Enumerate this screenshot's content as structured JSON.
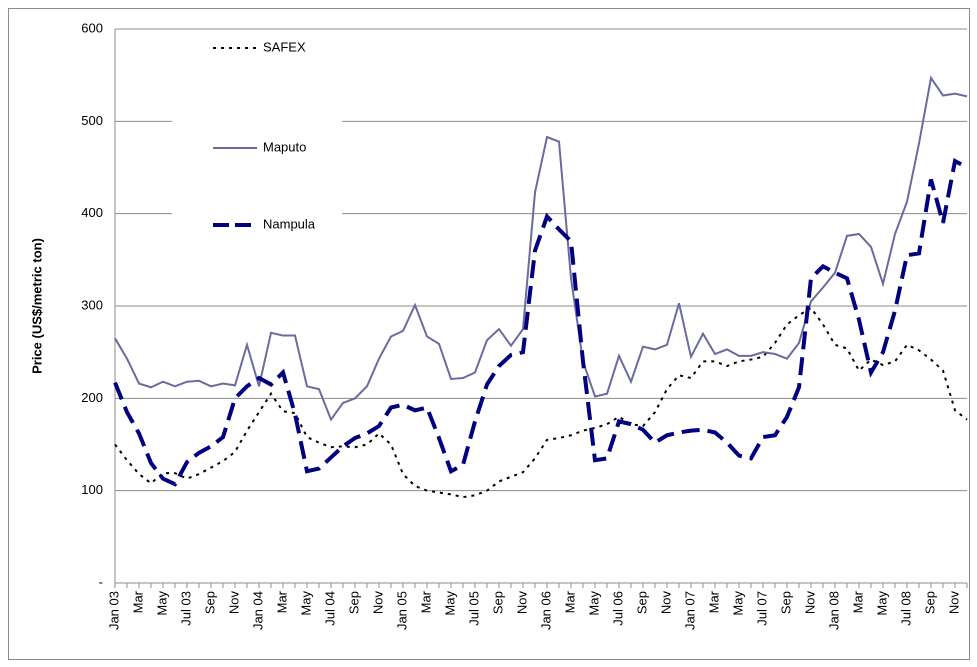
{
  "chart_data": {
    "type": "line",
    "ylabel": "Price (US$/metric ton)",
    "categories": [
      "Jan 03",
      null,
      "Mar",
      null,
      "May",
      null,
      "Jul 03",
      null,
      "Sep",
      null,
      "Nov",
      null,
      "Jan 04",
      null,
      "Mar",
      null,
      "May",
      null,
      "Jul 04",
      null,
      "Sep",
      null,
      "Nov",
      null,
      "Jan 05",
      null,
      "Mar",
      null,
      "May",
      null,
      "Jul 05",
      null,
      "Sep",
      null,
      "Nov",
      null,
      "Jan 06",
      null,
      "Mar",
      null,
      "May",
      null,
      "Jul 06",
      null,
      "Sep",
      null,
      "Nov",
      null,
      "Jan 07",
      null,
      "Mar",
      null,
      "May",
      null,
      "Jul 07",
      null,
      "Sep",
      null,
      "Nov",
      null,
      "Jan 08",
      null,
      "Mar",
      null,
      "May",
      null,
      "Jul 08",
      null,
      "Sep",
      null,
      "Nov",
      null
    ],
    "series": [
      {
        "name": "SAFEX",
        "color": "#000000",
        "line_style": "dotted",
        "values": [
          150,
          133,
          118,
          108,
          119,
          119,
          113,
          118,
          125,
          132,
          142,
          165,
          185,
          205,
          186,
          184,
          158,
          152,
          147,
          148,
          147,
          150,
          162,
          150,
          118,
          105,
          100,
          98,
          96,
          93,
          95,
          100,
          110,
          115,
          120,
          135,
          155,
          157,
          160,
          165,
          168,
          172,
          180,
          172,
          170,
          185,
          210,
          225,
          222,
          240,
          240,
          235,
          240,
          242,
          245,
          260,
          280,
          290,
          298,
          280,
          258,
          254,
          230,
          242,
          236,
          240,
          258,
          252,
          242,
          230,
          187,
          177
        ]
      },
      {
        "name": "Maputo",
        "color": "#6b6b9e",
        "line_style": "solid",
        "values": [
          265,
          243,
          216,
          212,
          218,
          213,
          218,
          219,
          213,
          216,
          214,
          258,
          213,
          271,
          268,
          268,
          213,
          210,
          177,
          195,
          200,
          213,
          243,
          267,
          273,
          301,
          267,
          259,
          221,
          222,
          228,
          263,
          275,
          257,
          275,
          423,
          483,
          478,
          330,
          240,
          202,
          205,
          246,
          218,
          256,
          253,
          258,
          303,
          245,
          270,
          248,
          253,
          246,
          246,
          250,
          248,
          243,
          260,
          305,
          320,
          336,
          376,
          378,
          364,
          324,
          378,
          413,
          476,
          547,
          528,
          530,
          527
        ]
      },
      {
        "name": "Nampula",
        "color": "#000080",
        "line_style": "dashed",
        "values": [
          217,
          185,
          162,
          130,
          113,
          107,
          131,
          141,
          148,
          158,
          200,
          213,
          222,
          215,
          228,
          183,
          121,
          124,
          136,
          148,
          157,
          162,
          170,
          190,
          193,
          187,
          190,
          157,
          121,
          128,
          175,
          215,
          235,
          247,
          250,
          360,
          397,
          383,
          370,
          240,
          133,
          135,
          175,
          172,
          166,
          152,
          160,
          163,
          165,
          166,
          163,
          152,
          138,
          135,
          158,
          160,
          180,
          212,
          330,
          343,
          336,
          330,
          285,
          228,
          250,
          295,
          355,
          357,
          437,
          390,
          457,
          450
        ]
      }
    ],
    "ylim": [
      0,
      600
    ],
    "yticks": [
      {
        "value": 0,
        "label": "-"
      },
      100,
      200,
      300,
      400,
      500,
      600
    ],
    "grid": true
  }
}
